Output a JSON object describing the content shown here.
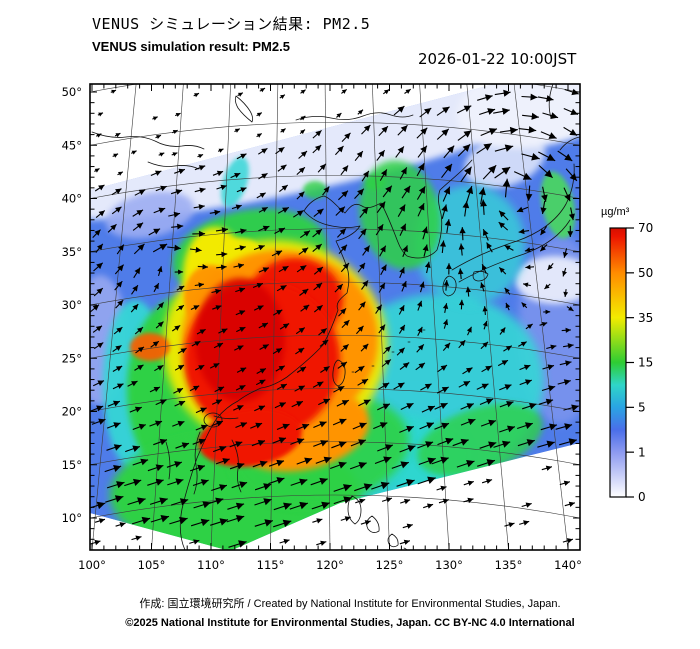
{
  "header": {
    "title_jp": "VENUS シミュレーション結果: PM2.5",
    "title_en": "VENUS simulation result: PM2.5",
    "datetime": "2026-01-22 10:00JST"
  },
  "colorbar": {
    "unit": "µg/m³",
    "ticks": [
      "70",
      "50",
      "35",
      "15",
      "5",
      "1",
      "0"
    ],
    "gradient": [
      [
        0.0,
        "#ffffff"
      ],
      [
        0.1667,
        "#8d9af0"
      ],
      [
        0.25,
        "#4a6ee9"
      ],
      [
        0.3333,
        "#2aa4e3"
      ],
      [
        0.4167,
        "#2fd5c8"
      ],
      [
        0.5,
        "#2ecc33"
      ],
      [
        0.6667,
        "#f3ec00"
      ],
      [
        0.8333,
        "#ff8c00"
      ],
      [
        0.97,
        "#ec1400"
      ],
      [
        1.0,
        "#d50f00"
      ]
    ]
  },
  "axes": {
    "lat_labels": [
      "50°",
      "45°",
      "40°",
      "35°",
      "30°",
      "25°",
      "20°",
      "15°",
      "10°"
    ],
    "lon_labels": [
      "100°",
      "105°",
      "110°",
      "115°",
      "120°",
      "125°",
      "130°",
      "135°",
      "140°"
    ]
  },
  "footer": {
    "line1": "作成: 国立環境研究所 / Created by National Institute for Environmental Studies, Japan.",
    "line2": "©2025 National Institute for Environmental Studies, Japan. CC BY-NC 4.0 International"
  },
  "map_colors": {
    "base": "#4f7ce9",
    "pale": "#e4e9fb",
    "pale2": "#eef1fc",
    "peri": "#8fa3ef",
    "peri_l": "#9dadf2",
    "peri_d": "#7d95ee",
    "cyan": "#35d6d6",
    "cyan2": "#2fd7cf",
    "green": "#2fd145",
    "green2": "#49e44c",
    "yellow": "#f2ea00",
    "orange": "#ff9400",
    "orange2": "#ff5a00",
    "red": "#f01500",
    "dark_red": "#d80000",
    "arrow": "#000000",
    "coast": "#141414",
    "grid": "#3c3c3c",
    "frame": "#000000"
  },
  "chart_data": {
    "type": "heatmap",
    "title": "VENUS simulation result: PM2.5",
    "datetime": "2026-01-22 10:00JST",
    "unit": "µg/m³",
    "scale_ticks": [
      0,
      1,
      5,
      15,
      35,
      50,
      70
    ],
    "x_axis": {
      "label": "longitude",
      "ticks_deg": [
        100,
        105,
        110,
        115,
        120,
        125,
        130,
        135,
        140
      ]
    },
    "y_axis": {
      "label": "latitude",
      "ticks_deg": [
        50,
        45,
        40,
        35,
        30,
        25,
        20,
        15,
        10
      ]
    },
    "overlays": [
      "wind vector arrows",
      "coastlines",
      "lat-lon graticule",
      "tilted model domain edge"
    ],
    "field_summary": [
      {
        "region": "eastern-central China (~105-120E, 22-35N)",
        "pm25_ugm3": "50-70+"
      },
      {
        "region": "southern China / northern Indochina",
        "pm25_ugm3": "15-35"
      },
      {
        "region": "Yellow Sea, Korea, East China Sea",
        "pm25_ugm3": "5-15"
      },
      {
        "region": "Japan and surrounding seas",
        "pm25_ugm3": "1-5"
      },
      {
        "region": "northern domain edge (Mongolia/Siberia side)",
        "pm25_ugm3": "0-1"
      }
    ],
    "legend_position": "right"
  }
}
